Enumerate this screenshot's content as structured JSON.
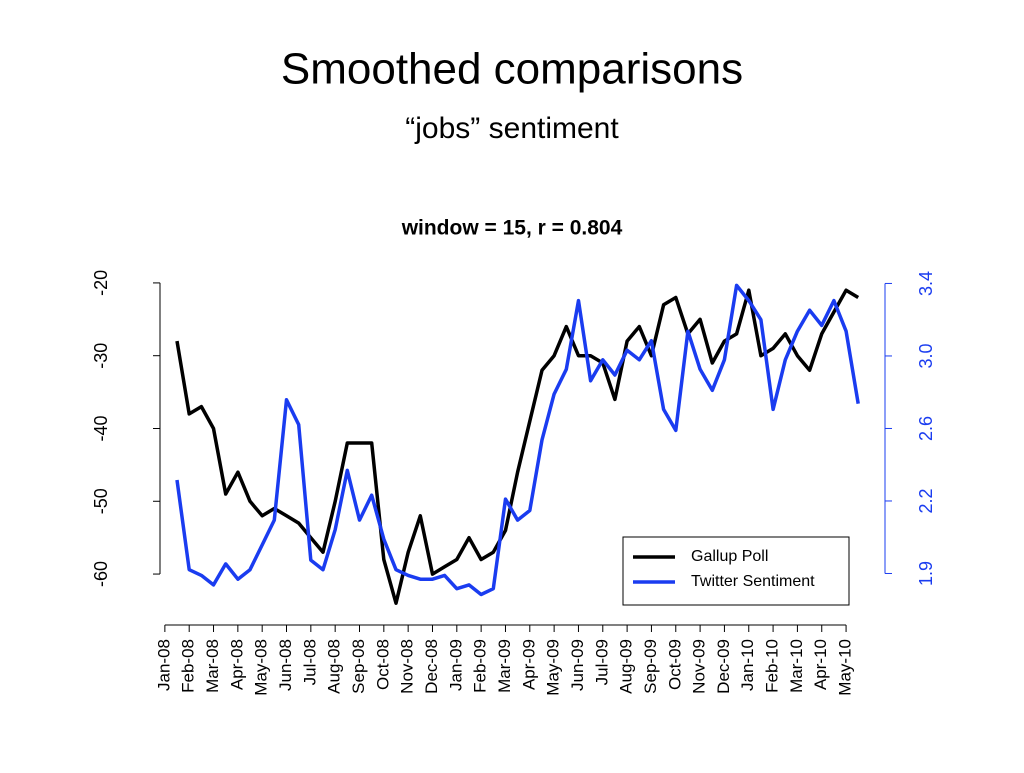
{
  "slide_title": "Smoothed comparisons",
  "slide_subtitle": "“jobs” sentiment",
  "chart_data": {
    "type": "line",
    "title": "window = 15, r = 0.804",
    "x": [
      0.5,
      1,
      1.5,
      2,
      2.5,
      3,
      3.5,
      4,
      4.5,
      5,
      5.5,
      6,
      6.5,
      7,
      7.5,
      8,
      8.5,
      9,
      9.5,
      10,
      10.5,
      11,
      11.5,
      12,
      12.5,
      13,
      13.5,
      14,
      14.5,
      15,
      15.5,
      16,
      16.5,
      17,
      17.5,
      18,
      18.5,
      19,
      19.5,
      20,
      20.5,
      21,
      21.5,
      22,
      22.5,
      23,
      23.5,
      24,
      24.5,
      25,
      25.5,
      26,
      26.5,
      27,
      27.5,
      28,
      28.5
    ],
    "series": [
      {
        "name": "Gallup Poll",
        "color": "#000000",
        "axis": "y",
        "values": [
          -28,
          -38,
          -37,
          -40,
          -49,
          -46,
          -50,
          -52,
          -51,
          -52,
          -53,
          -55,
          -57,
          -50,
          -42,
          -42,
          -42,
          -58,
          -64,
          -57,
          -52,
          -60,
          -59,
          -58,
          -55,
          -58,
          -57,
          -54,
          -46,
          -39,
          -32,
          -30,
          -26,
          -30,
          -30,
          -31,
          -36,
          -28,
          -26,
          -30,
          -23,
          -22,
          -27,
          -25,
          -31,
          -28,
          -27,
          -21,
          -30,
          -29,
          -27,
          -30,
          -32,
          -27,
          -24,
          -21,
          -22
        ]
      },
      {
        "name": "Twitter Sentiment",
        "color": "#1a3cf0",
        "axis": "y2",
        "values": [
          2.35,
          1.88,
          1.85,
          1.8,
          1.91,
          1.83,
          1.88,
          2.01,
          2.14,
          2.77,
          2.64,
          1.93,
          1.88,
          2.09,
          2.4,
          2.14,
          2.27,
          2.04,
          1.88,
          1.85,
          1.83,
          1.83,
          1.85,
          1.78,
          1.8,
          1.75,
          1.78,
          2.25,
          2.14,
          2.19,
          2.56,
          2.8,
          2.93,
          3.29,
          2.87,
          2.98,
          2.9,
          3.03,
          2.98,
          3.08,
          2.72,
          2.61,
          3.13,
          2.93,
          2.82,
          2.98,
          3.37,
          3.29,
          3.19,
          2.72,
          2.98,
          3.13,
          3.24,
          3.16,
          3.29,
          3.13,
          2.75
        ]
      }
    ],
    "xlim": [
      -0.2,
      29.6
    ],
    "xticks": [
      {
        "value": 0,
        "label": "Jan-08"
      },
      {
        "value": 1,
        "label": "Feb-08"
      },
      {
        "value": 2,
        "label": "Mar-08"
      },
      {
        "value": 3,
        "label": "Apr-08"
      },
      {
        "value": 4,
        "label": "May-08"
      },
      {
        "value": 5,
        "label": "Jun-08"
      },
      {
        "value": 6,
        "label": "Jul-08"
      },
      {
        "value": 7,
        "label": "Aug-08"
      },
      {
        "value": 8,
        "label": "Sep-08"
      },
      {
        "value": 9,
        "label": "Oct-08"
      },
      {
        "value": 10,
        "label": "Nov-08"
      },
      {
        "value": 11,
        "label": "Dec-08"
      },
      {
        "value": 12,
        "label": "Jan-09"
      },
      {
        "value": 13,
        "label": "Feb-09"
      },
      {
        "value": 14,
        "label": "Mar-09"
      },
      {
        "value": 15,
        "label": "Apr-09"
      },
      {
        "value": 16,
        "label": "May-09"
      },
      {
        "value": 17,
        "label": "Jun-09"
      },
      {
        "value": 18,
        "label": "Jul-09"
      },
      {
        "value": 19,
        "label": "Aug-09"
      },
      {
        "value": 20,
        "label": "Sep-09"
      },
      {
        "value": 21,
        "label": "Oct-09"
      },
      {
        "value": 22,
        "label": "Nov-09"
      },
      {
        "value": 23,
        "label": "Dec-09"
      },
      {
        "value": 24,
        "label": "Jan-10"
      },
      {
        "value": 25,
        "label": "Feb-10"
      },
      {
        "value": 26,
        "label": "Mar-10"
      },
      {
        "value": 27,
        "label": "Apr-10"
      },
      {
        "value": 28,
        "label": "May-10"
      }
    ],
    "ylim": [
      -67,
      -18.5
    ],
    "yticks": [
      -60,
      -50,
      -40,
      -30,
      -20
    ],
    "y2lim": [
      1.59,
      3.44
    ],
    "y2ticks": [
      {
        "value": 1.86,
        "label": "1.9"
      },
      {
        "value": 2.24,
        "label": "2.2"
      },
      {
        "value": 2.62,
        "label": "2.6"
      },
      3.0,
      {
        "value": 3.38,
        "label": "3.4"
      }
    ],
    "y2color": "#1a3cf0",
    "legend": "bottom-right"
  }
}
